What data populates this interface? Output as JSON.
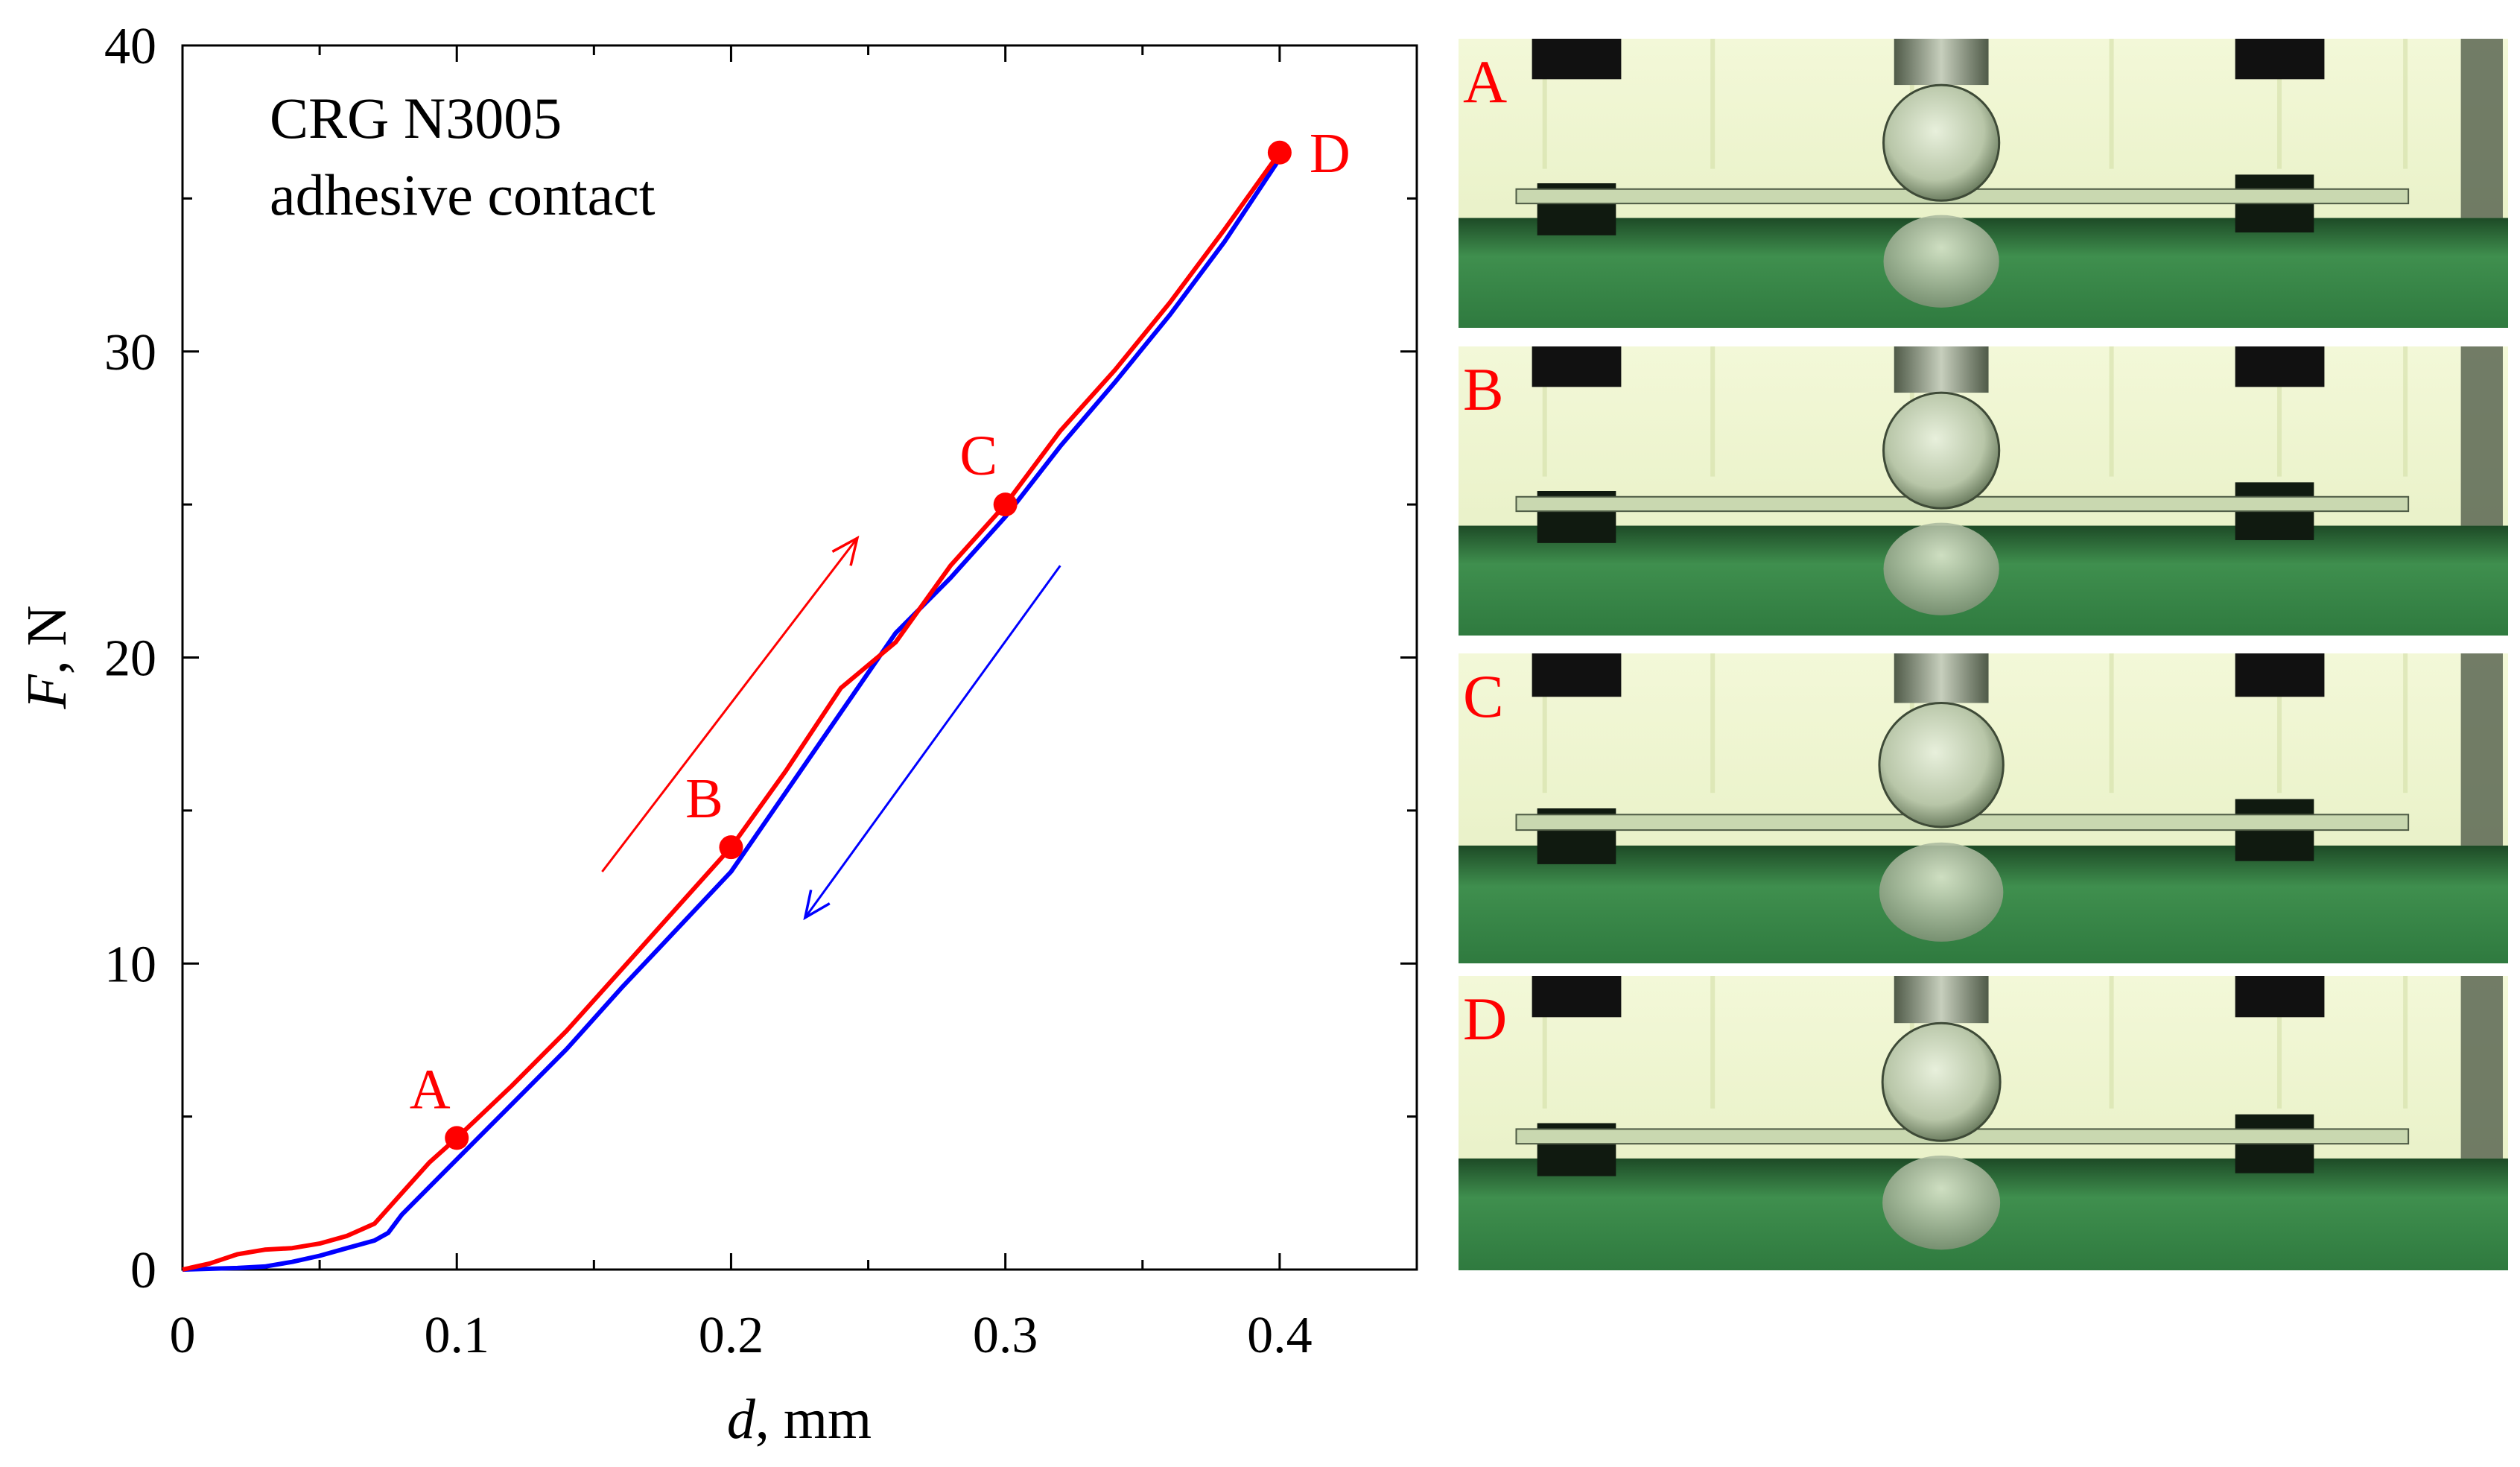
{
  "chart_data": {
    "type": "line",
    "title_lines": [
      "CRG N3005",
      "adhesive contact"
    ],
    "xlabel_var": "d",
    "xlabel_unit": ", mm",
    "ylabel_var": "F",
    "ylabel_unit": ", N",
    "xlim": [
      0,
      0.45
    ],
    "ylim": [
      0,
      40
    ],
    "x_major_ticks": [
      0,
      0.1,
      0.2,
      0.3,
      0.4
    ],
    "x_tick_labels": [
      "0",
      "0.1",
      "0.2",
      "0.3",
      "0.4"
    ],
    "x_minor_ticks": [
      0.05,
      0.15,
      0.25,
      0.35,
      0.45
    ],
    "y_major_ticks": [
      0,
      10,
      20,
      30,
      40
    ],
    "y_tick_labels": [
      "0",
      "10",
      "20",
      "30",
      "40"
    ],
    "y_minor_ticks": [
      5,
      15,
      25,
      35
    ],
    "series": [
      {
        "name": "loading",
        "color": "#ff0000",
        "points": [
          [
            0,
            0
          ],
          [
            0.01,
            0.2
          ],
          [
            0.02,
            0.5
          ],
          [
            0.03,
            0.65
          ],
          [
            0.04,
            0.7
          ],
          [
            0.05,
            0.85
          ],
          [
            0.06,
            1.1
          ],
          [
            0.07,
            1.5
          ],
          [
            0.08,
            2.5
          ],
          [
            0.09,
            3.5
          ],
          [
            0.1,
            4.3
          ],
          [
            0.12,
            6.0
          ],
          [
            0.14,
            7.8
          ],
          [
            0.16,
            9.8
          ],
          [
            0.18,
            11.8
          ],
          [
            0.2,
            13.8
          ],
          [
            0.22,
            16.3
          ],
          [
            0.24,
            19.0
          ],
          [
            0.26,
            20.5
          ],
          [
            0.28,
            23.0
          ],
          [
            0.3,
            25.0
          ],
          [
            0.32,
            27.4
          ],
          [
            0.34,
            29.4
          ],
          [
            0.36,
            31.6
          ],
          [
            0.38,
            34.0
          ],
          [
            0.4,
            36.5
          ]
        ]
      },
      {
        "name": "unloading",
        "color": "#0000ff",
        "points": [
          [
            0,
            0
          ],
          [
            0.02,
            0.05
          ],
          [
            0.03,
            0.1
          ],
          [
            0.04,
            0.25
          ],
          [
            0.05,
            0.45
          ],
          [
            0.06,
            0.7
          ],
          [
            0.07,
            0.95
          ],
          [
            0.075,
            1.2
          ],
          [
            0.08,
            1.8
          ],
          [
            0.09,
            2.7
          ],
          [
            0.1,
            3.6
          ],
          [
            0.12,
            5.4
          ],
          [
            0.14,
            7.2
          ],
          [
            0.16,
            9.2
          ],
          [
            0.18,
            11.1
          ],
          [
            0.2,
            13.0
          ],
          [
            0.22,
            15.6
          ],
          [
            0.24,
            18.2
          ],
          [
            0.26,
            20.8
          ],
          [
            0.28,
            22.6
          ],
          [
            0.3,
            24.6
          ],
          [
            0.32,
            26.9
          ],
          [
            0.34,
            29.0
          ],
          [
            0.36,
            31.2
          ],
          [
            0.38,
            33.6
          ],
          [
            0.4,
            36.3
          ]
        ]
      }
    ],
    "marked_points": [
      {
        "label": "A",
        "x": 0.1,
        "y": 4.3,
        "label_side": "above-left"
      },
      {
        "label": "B",
        "x": 0.2,
        "y": 13.8,
        "label_side": "above-left"
      },
      {
        "label": "C",
        "x": 0.3,
        "y": 25.0,
        "label_side": "above-left"
      },
      {
        "label": "D",
        "x": 0.4,
        "y": 36.5,
        "label_side": "right"
      }
    ],
    "direction_arrows": [
      {
        "name": "loading-arrow",
        "color": "#ff0000",
        "from": [
          0.153,
          13.0
        ],
        "to": [
          0.246,
          23.9
        ]
      },
      {
        "name": "unloading-arrow",
        "color": "#0000ff",
        "from": [
          0.32,
          23.0
        ],
        "to": [
          0.227,
          11.5
        ]
      }
    ]
  },
  "photos": {
    "labels": [
      "A",
      "B",
      "C",
      "D"
    ],
    "background": "#2e7a40",
    "light": "#eef6cc"
  },
  "colors": {
    "loading": "#ff0000",
    "unloading": "#0000ff",
    "label": "#ff0000",
    "axis": "#000000"
  }
}
